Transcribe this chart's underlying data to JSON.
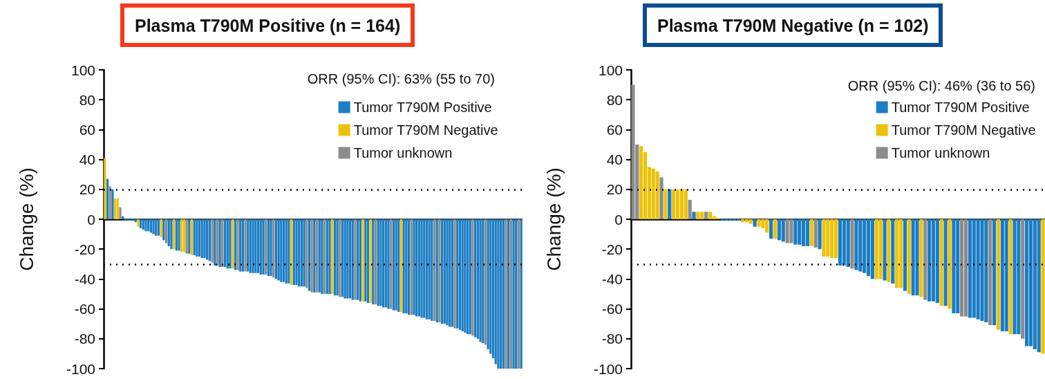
{
  "chart_data": [
    {
      "type": "bar",
      "title": "Plasma T790M Positive (n = 164)",
      "ylabel": "Change (%)",
      "annotations": [
        "ORR (95% CI): 63% (55 to 70)"
      ],
      "stacked": true,
      "legend": "top right",
      "grid": false,
      "tick_labels": "y",
      "ylim": [
        -100,
        100
      ],
      "yticks": [
        -100,
        -80,
        -60,
        -40,
        -20,
        0,
        20,
        40,
        60,
        80,
        100
      ],
      "ref_lines": [
        {
          "axis": "y",
          "value": 20,
          "line_style": "dotted"
        },
        {
          "axis": "y",
          "value": -30,
          "line_style": "dotted"
        }
      ],
      "categories": [
        null,
        null,
        null,
        null,
        null,
        null,
        null,
        null,
        null,
        null,
        null,
        null,
        null,
        null,
        null,
        null,
        null,
        null,
        null,
        null,
        null,
        null,
        null,
        null,
        null,
        null,
        null,
        null,
        null,
        null,
        null,
        null,
        null,
        null,
        null,
        null,
        null,
        null,
        null,
        null,
        null,
        null,
        null,
        null,
        null,
        null,
        null,
        null,
        null,
        null,
        null,
        null,
        null,
        null,
        null,
        null,
        null,
        null,
        null,
        null,
        null,
        null,
        null,
        null,
        null,
        null,
        null,
        null,
        null,
        null,
        null,
        null,
        null,
        null,
        null,
        null,
        null,
        null,
        null,
        null,
        null,
        null,
        null,
        null,
        null,
        null,
        null,
        null,
        null,
        null,
        null,
        null,
        null,
        null,
        null,
        null,
        null,
        null,
        null,
        null,
        null,
        null,
        null,
        null,
        null,
        null,
        null,
        null,
        null,
        null,
        null,
        null,
        null,
        null,
        null,
        null,
        null,
        null,
        null,
        null,
        null,
        null,
        null,
        null,
        null,
        null,
        null,
        null,
        null,
        null,
        null,
        null,
        null,
        null,
        null,
        null,
        null,
        null,
        null,
        null,
        null,
        null,
        null,
        null,
        null,
        null,
        null,
        null,
        null,
        null,
        null,
        null,
        null,
        null,
        null,
        null,
        null,
        null,
        null,
        null,
        null,
        null,
        null,
        null
      ],
      "series": [
        {
          "name": "Tumor T790M Positive",
          "color": "#1b7dc4",
          "values": [
            null,
            27,
            null,
            20,
            null,
            null,
            null,
            2,
            -1,
            -1,
            -1,
            -1,
            -2,
            null,
            -6,
            -7,
            -8,
            -8,
            -9,
            -10,
            -11,
            -11,
            null,
            -14,
            null,
            -18,
            -20,
            null,
            -21,
            -21,
            null,
            null,
            null,
            -23,
            null,
            -24,
            -25,
            -25,
            -26,
            -26,
            -27,
            -28,
            null,
            -31,
            null,
            -32,
            null,
            -32,
            -33,
            -33,
            null,
            -34,
            null,
            -35,
            -35,
            null,
            -35,
            -36,
            -36,
            -36,
            -36,
            -37,
            -37,
            null,
            -38,
            -38,
            null,
            -40,
            -41,
            -42,
            -42,
            -43,
            -43,
            null,
            -44,
            -44,
            -45,
            -45,
            -45,
            null,
            -48,
            null,
            -49,
            null,
            -49,
            -50,
            null,
            -50,
            -50,
            null,
            -51,
            -51,
            null,
            -52,
            -53,
            -53,
            -53,
            -54,
            null,
            -54,
            -55,
            null,
            -55,
            -56,
            null,
            -57,
            null,
            -58,
            -58,
            -59,
            -59,
            -60,
            null,
            -61,
            -61,
            -62,
            null,
            -63,
            -63,
            -64,
            null,
            -64,
            -65,
            -65,
            -66,
            -66,
            -67,
            -67,
            -68,
            null,
            -69,
            null,
            -70,
            -70,
            -71,
            -72,
            -72,
            null,
            -73,
            -74,
            -75,
            -76,
            -77,
            -77,
            null,
            -79,
            -80,
            -82,
            -83,
            null,
            -87,
            -90,
            -93,
            -97,
            -100,
            -100,
            -100,
            null,
            -100,
            null,
            -100,
            -100,
            null,
            -100
          ]
        },
        {
          "name": "Tumor T790M Negative",
          "color": "#ecc30c",
          "values": [
            41,
            null,
            null,
            null,
            14,
            14,
            null,
            null,
            null,
            null,
            null,
            null,
            null,
            -5,
            null,
            null,
            null,
            null,
            null,
            null,
            null,
            null,
            -12,
            null,
            null,
            null,
            null,
            -20,
            null,
            null,
            -22,
            -22,
            null,
            null,
            -24,
            null,
            null,
            null,
            null,
            null,
            null,
            null,
            null,
            null,
            null,
            null,
            null,
            null,
            null,
            null,
            -33,
            null,
            null,
            null,
            null,
            null,
            null,
            null,
            null,
            null,
            null,
            null,
            null,
            null,
            null,
            null,
            null,
            null,
            null,
            null,
            null,
            null,
            null,
            -44,
            null,
            null,
            null,
            null,
            null,
            null,
            null,
            null,
            null,
            null,
            null,
            null,
            null,
            null,
            null,
            -50,
            null,
            null,
            null,
            null,
            null,
            null,
            null,
            null,
            null,
            null,
            null,
            -55,
            null,
            null,
            -56,
            null,
            null,
            null,
            null,
            null,
            null,
            null,
            null,
            null,
            null,
            null,
            -62,
            null,
            null,
            null,
            null,
            null,
            null,
            null,
            null,
            null,
            null,
            null,
            null,
            null,
            null,
            null,
            null,
            null,
            null,
            null,
            null,
            null,
            null,
            null,
            null,
            null,
            null,
            null,
            null,
            null,
            null,
            null,
            null,
            null,
            null,
            null,
            null,
            null,
            null,
            null,
            null,
            null,
            null,
            null,
            null,
            null,
            null,
            null
          ]
        },
        {
          "name": "Tumor unknown",
          "color": "#8c8c8c",
          "values": [
            null,
            null,
            22,
            null,
            null,
            null,
            8,
            null,
            null,
            null,
            null,
            null,
            null,
            null,
            null,
            null,
            null,
            null,
            null,
            null,
            null,
            null,
            null,
            null,
            -16,
            null,
            null,
            null,
            null,
            null,
            null,
            null,
            -23,
            null,
            null,
            null,
            null,
            null,
            null,
            null,
            null,
            null,
            -29,
            null,
            -31,
            null,
            -32,
            null,
            null,
            null,
            null,
            null,
            -34,
            null,
            null,
            -35,
            null,
            null,
            null,
            null,
            null,
            null,
            null,
            -37,
            null,
            null,
            -39,
            null,
            null,
            null,
            null,
            null,
            null,
            null,
            null,
            null,
            null,
            null,
            null,
            -46,
            null,
            -49,
            null,
            -49,
            null,
            null,
            -50,
            null,
            null,
            null,
            null,
            null,
            -52,
            null,
            null,
            null,
            null,
            null,
            -54,
            null,
            null,
            null,
            null,
            null,
            null,
            null,
            -57,
            null,
            null,
            null,
            null,
            null,
            -60,
            null,
            null,
            null,
            null,
            null,
            null,
            null,
            -64,
            null,
            null,
            null,
            null,
            null,
            null,
            null,
            null,
            -68,
            null,
            -69,
            null,
            null,
            null,
            null,
            null,
            -73,
            null,
            null,
            null,
            null,
            null,
            null,
            -78,
            null,
            null,
            null,
            null,
            -84,
            null,
            null,
            null,
            null,
            null,
            null,
            null,
            -100,
            null,
            -100,
            null,
            null,
            -100,
            null
          ]
        }
      ]
    },
    {
      "type": "bar",
      "title": "Plasma T790M Negative (n = 102)",
      "ylabel": "Change (%)",
      "annotations": [
        "ORR (95% CI): 46% (36 to 56)"
      ],
      "stacked": true,
      "legend": "top right",
      "grid": false,
      "tick_labels": "y",
      "ylim": [
        -100,
        100
      ],
      "yticks": [
        -100,
        -80,
        -60,
        -40,
        -20,
        0,
        20,
        40,
        60,
        80,
        100
      ],
      "ref_lines": [
        {
          "axis": "y",
          "value": 20,
          "line_style": "dotted"
        },
        {
          "axis": "y",
          "value": -30,
          "line_style": "dotted"
        }
      ],
      "categories": [
        null,
        null,
        null,
        null,
        null,
        null,
        null,
        null,
        null,
        null,
        null,
        null,
        null,
        null,
        null,
        null,
        null,
        null,
        null,
        null,
        null,
        null,
        null,
        null,
        null,
        null,
        null,
        null,
        null,
        null,
        null,
        null,
        null,
        null,
        null,
        null,
        null,
        null,
        null,
        null,
        null,
        null,
        null,
        null,
        null,
        null,
        null,
        null,
        null,
        null,
        null,
        null,
        null,
        null,
        null,
        null,
        null,
        null,
        null,
        null,
        null,
        null,
        null,
        null,
        null,
        null,
        null,
        null,
        null,
        null,
        null,
        null,
        null,
        null,
        null,
        null,
        null,
        null,
        null,
        null,
        null,
        null,
        null,
        null,
        null,
        null,
        null,
        null,
        null,
        null,
        null,
        null,
        null,
        null,
        null,
        null,
        null,
        null,
        null,
        null,
        null,
        null
      ],
      "series": [
        {
          "name": "Tumor T790M Positive",
          "color": "#1b7dc4",
          "values": [
            null,
            null,
            null,
            null,
            null,
            null,
            null,
            null,
            null,
            20,
            null,
            null,
            null,
            null,
            null,
            5,
            null,
            null,
            null,
            null,
            null,
            null,
            -1,
            -1,
            -1,
            -1,
            -1,
            null,
            null,
            null,
            -5,
            null,
            null,
            null,
            -13,
            null,
            -14,
            -15,
            null,
            null,
            -17,
            -17,
            -18,
            -18,
            null,
            null,
            -20,
            null,
            null,
            null,
            null,
            -31,
            -31,
            -32,
            null,
            -34,
            -35,
            -36,
            -38,
            -40,
            null,
            null,
            -41,
            null,
            -43,
            null,
            null,
            -48,
            null,
            -51,
            -51,
            null,
            null,
            -55,
            -55,
            -56,
            null,
            -58,
            null,
            -63,
            -63,
            null,
            null,
            -66,
            -66,
            -67,
            -68,
            -69,
            null,
            -71,
            null,
            -75,
            -75,
            null,
            -77,
            -77,
            null,
            -85,
            -85,
            -87,
            -89,
            null
          ]
        },
        {
          "name": "Tumor T790M Negative",
          "color": "#ecc30c",
          "values": [
            null,
            null,
            49,
            45,
            35,
            34,
            32,
            null,
            20,
            null,
            20,
            20,
            20,
            20,
            null,
            null,
            5,
            5,
            null,
            5,
            2,
            1,
            null,
            null,
            null,
            null,
            null,
            -2,
            -2,
            -3,
            null,
            -5,
            -6,
            -9,
            null,
            -13,
            null,
            null,
            null,
            null,
            null,
            null,
            null,
            null,
            -18,
            null,
            null,
            -25,
            -25,
            -26,
            -26,
            null,
            null,
            null,
            null,
            null,
            null,
            null,
            null,
            null,
            -40,
            -40,
            null,
            -42,
            null,
            -46,
            -46,
            null,
            -50,
            null,
            null,
            -52,
            null,
            null,
            null,
            null,
            -58,
            null,
            -60,
            null,
            null,
            null,
            null,
            null,
            null,
            null,
            null,
            null,
            null,
            null,
            -74,
            null,
            null,
            -77,
            null,
            null,
            null,
            null,
            null,
            null,
            null,
            -90
          ]
        },
        {
          "name": "Tumor unknown",
          "color": "#8c8c8c",
          "values": [
            90,
            50,
            null,
            null,
            null,
            null,
            null,
            28,
            null,
            null,
            null,
            null,
            null,
            null,
            13,
            null,
            null,
            null,
            5,
            null,
            null,
            null,
            null,
            null,
            null,
            null,
            null,
            null,
            null,
            null,
            null,
            null,
            null,
            null,
            null,
            null,
            null,
            null,
            -16,
            -16,
            null,
            null,
            null,
            null,
            null,
            -19,
            null,
            null,
            null,
            null,
            null,
            null,
            null,
            null,
            -33,
            null,
            null,
            null,
            null,
            null,
            null,
            null,
            null,
            null,
            null,
            null,
            null,
            null,
            null,
            null,
            null,
            null,
            -54,
            null,
            null,
            null,
            null,
            null,
            null,
            null,
            null,
            -65,
            -65,
            null,
            null,
            null,
            null,
            null,
            -71,
            null,
            null,
            null,
            null,
            null,
            null,
            null,
            -80,
            null,
            null,
            null,
            null,
            null
          ]
        }
      ]
    }
  ]
}
